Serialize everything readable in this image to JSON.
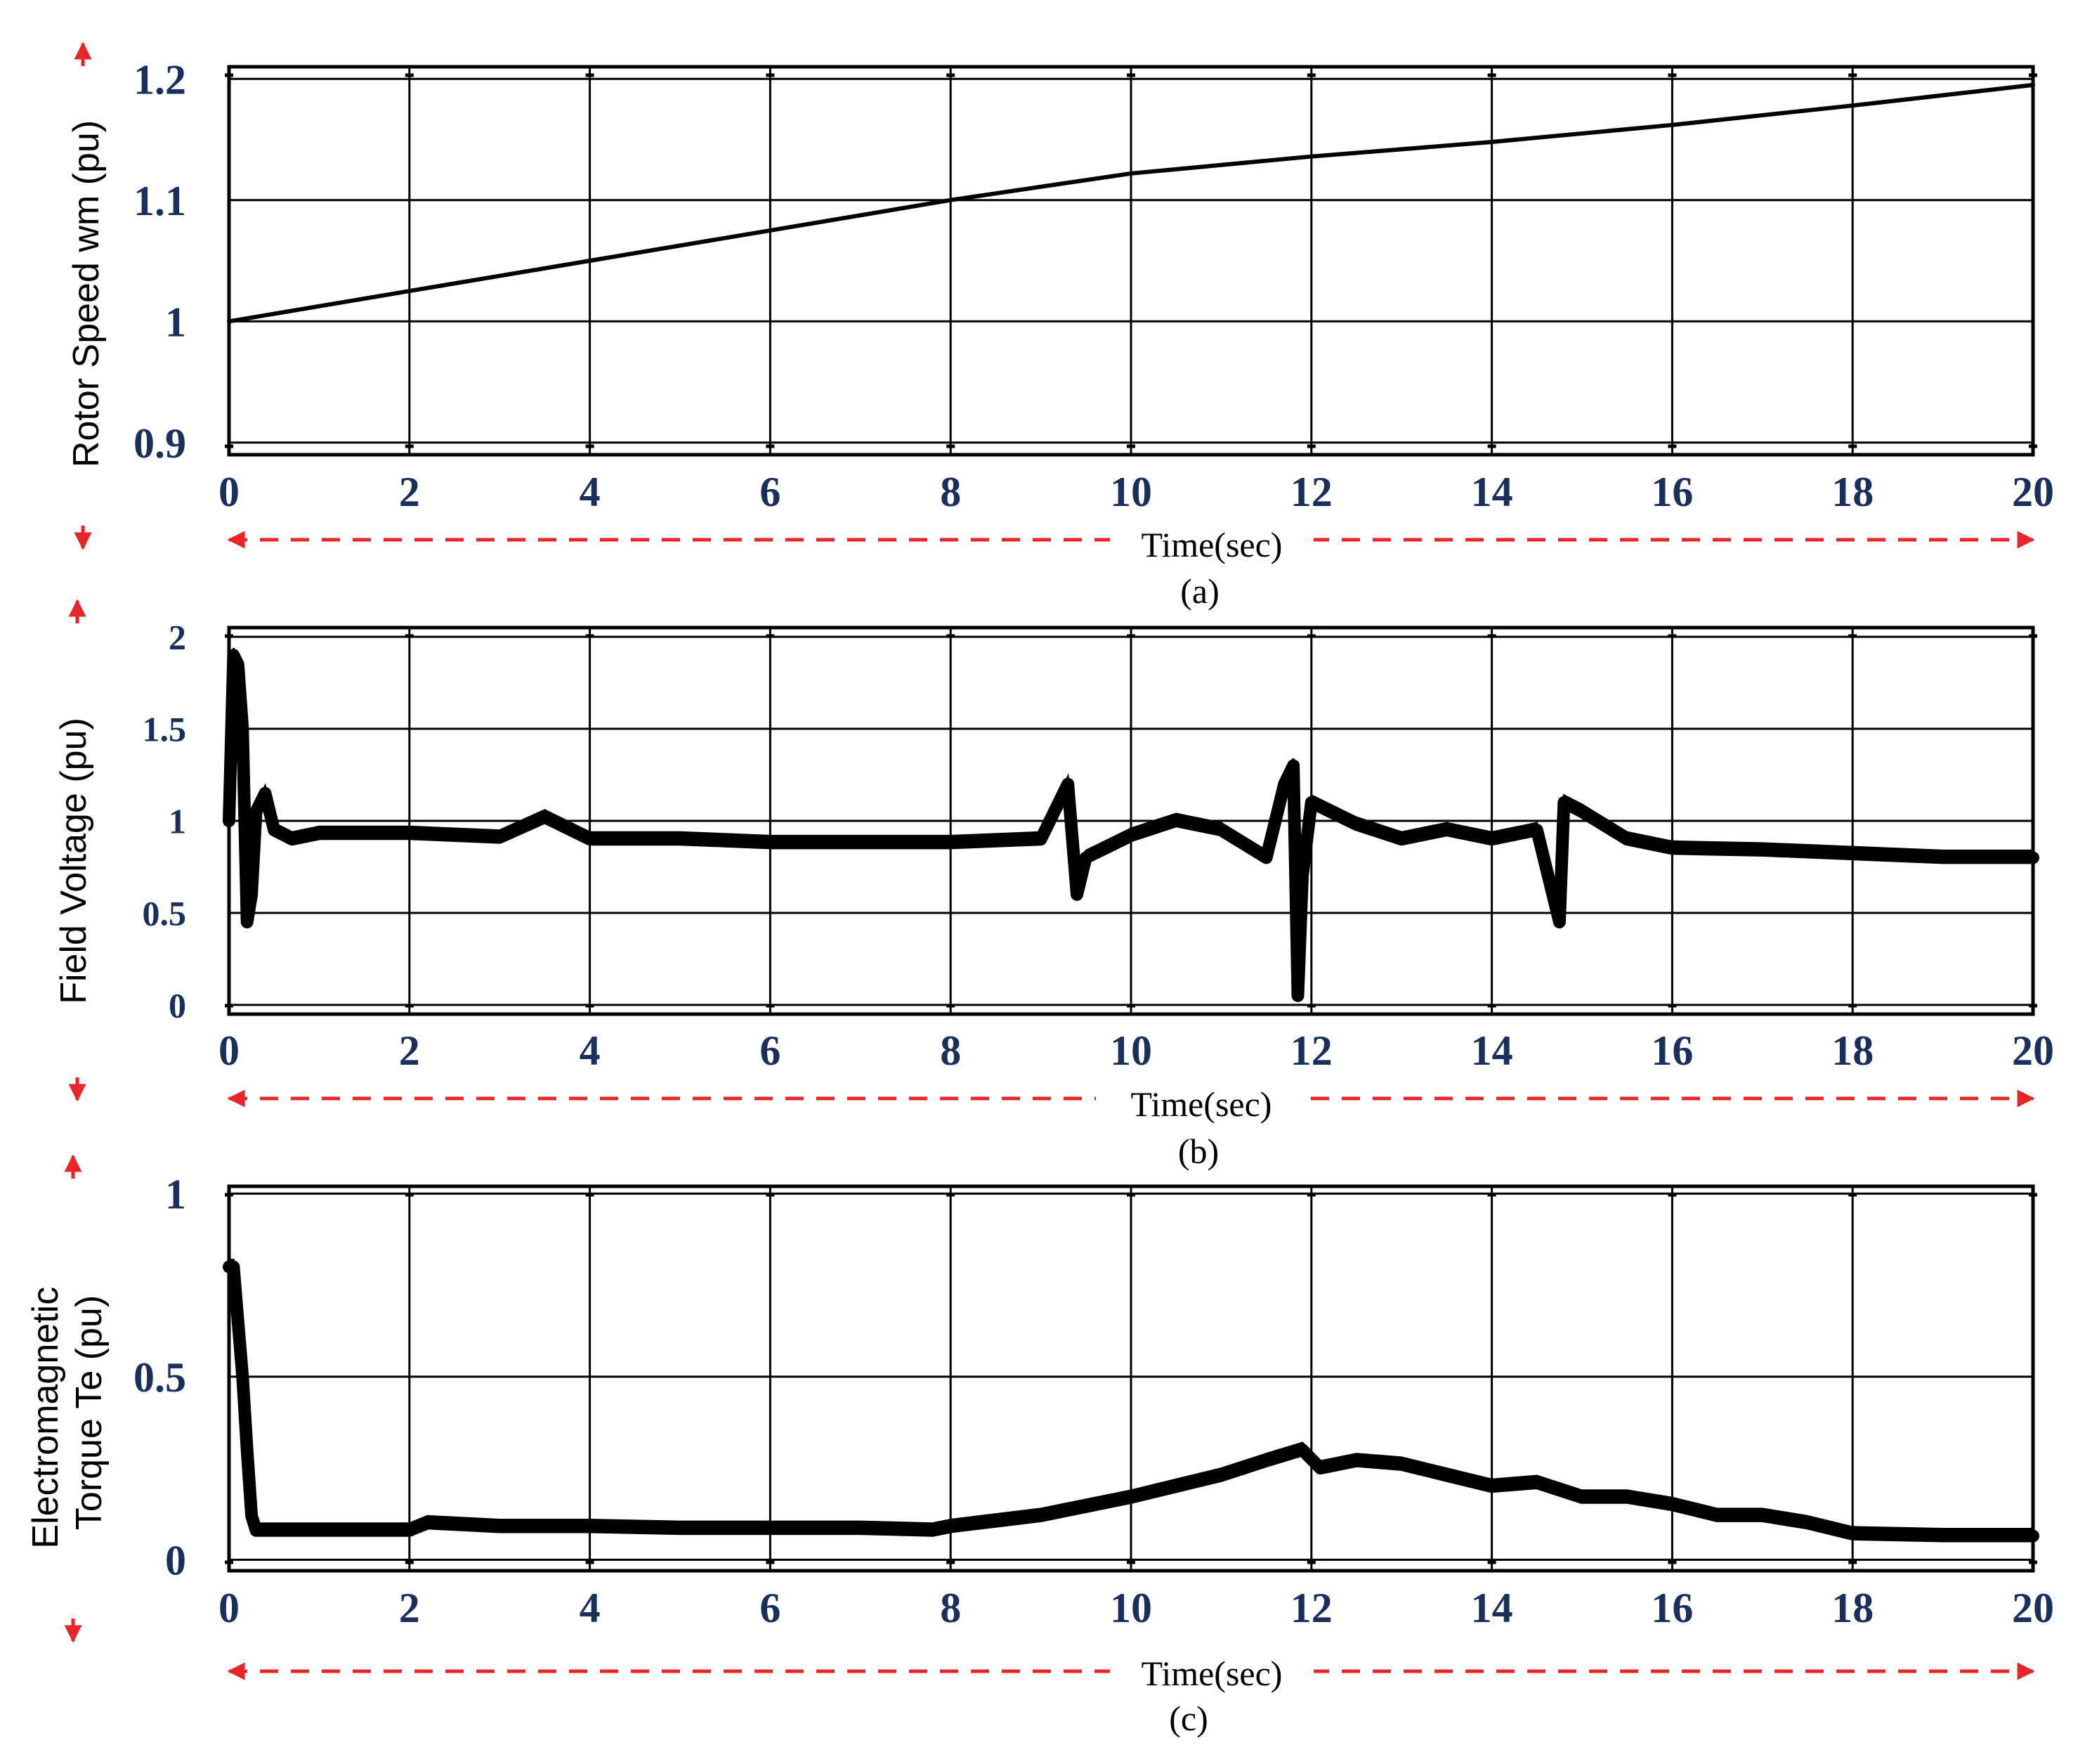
{
  "colors": {
    "signal": "#000000",
    "grid": "#000000",
    "tick_label": "#1a2f5c",
    "arrow": "#e8262a"
  },
  "chart_data": [
    {
      "type": "line",
      "panel_label": "(a)",
      "xlabel": "Time(sec)",
      "ylabel": "Rotor Speed wm (pu)",
      "xlim": [
        0,
        20
      ],
      "ylim": [
        0.89,
        1.21
      ],
      "x_ticks": [
        "0",
        "2",
        "4",
        "6",
        "8",
        "10",
        "12",
        "14",
        "16",
        "18",
        "20"
      ],
      "y_ticks": [
        {
          "v": 0.9,
          "label": "0.9"
        },
        {
          "v": 1.0,
          "label": "1"
        },
        {
          "v": 1.1,
          "label": "1.1"
        },
        {
          "v": 1.2,
          "label": "1.2"
        }
      ],
      "grid": true,
      "series": [
        {
          "x": [
            0,
            2,
            4,
            6,
            8,
            10,
            12,
            14,
            16,
            18,
            20
          ],
          "y": [
            1.0,
            1.025,
            1.05,
            1.075,
            1.1,
            1.122,
            1.136,
            1.148,
            1.162,
            1.178,
            1.195
          ]
        }
      ]
    },
    {
      "type": "line",
      "panel_label": "(b)",
      "xlabel": "Time(sec)",
      "ylabel": "Field Voltage (pu)",
      "xlim": [
        0,
        20
      ],
      "ylim": [
        -0.05,
        2.05
      ],
      "x_ticks": [
        "0",
        "2",
        "4",
        "6",
        "8",
        "10",
        "12",
        "14",
        "16",
        "18",
        "20"
      ],
      "y_ticks": [
        {
          "v": 0,
          "label": "0"
        },
        {
          "v": 0.5,
          "label": "0.5"
        },
        {
          "v": 1,
          "label": "1"
        },
        {
          "v": 1.5,
          "label": "1.5"
        },
        {
          "v": 2,
          "label": "2"
        }
      ],
      "grid": true,
      "series": [
        {
          "x": [
            0,
            0.05,
            0.1,
            0.15,
            0.2,
            0.25,
            0.3,
            0.4,
            0.5,
            0.7,
            1,
            2,
            3,
            3.5,
            4,
            5,
            6,
            7,
            8,
            9,
            9.3,
            9.4,
            9.5,
            10,
            10.5,
            11,
            11.5,
            11.7,
            11.8,
            11.85,
            11.9,
            12,
            12.5,
            13,
            13.5,
            14,
            14.5,
            14.75,
            14.8,
            15,
            15.5,
            16,
            17,
            18,
            19,
            20
          ],
          "y": [
            1.0,
            1.9,
            1.85,
            1.5,
            0.45,
            0.6,
            1.05,
            1.15,
            0.95,
            0.9,
            0.93,
            0.93,
            0.91,
            1.02,
            0.9,
            0.9,
            0.88,
            0.88,
            0.88,
            0.9,
            1.2,
            0.6,
            0.8,
            0.92,
            1.0,
            0.95,
            0.8,
            1.2,
            1.3,
            0.05,
            0.7,
            1.1,
            0.98,
            0.9,
            0.95,
            0.9,
            0.95,
            0.45,
            1.1,
            1.05,
            0.9,
            0.85,
            0.84,
            0.82,
            0.8,
            0.8
          ]
        }
      ]
    },
    {
      "type": "line",
      "panel_label": "(c)",
      "xlabel": "Time(sec)",
      "ylabel": "Electromagnetic Torque Te (pu)",
      "xlim": [
        0,
        20
      ],
      "ylim": [
        -0.03,
        1.02
      ],
      "x_ticks": [
        "0",
        "2",
        "4",
        "6",
        "8",
        "10",
        "12",
        "14",
        "16",
        "18",
        "20"
      ],
      "y_ticks": [
        {
          "v": 0,
          "label": "0"
        },
        {
          "v": 0.5,
          "label": "0.5"
        },
        {
          "v": 1,
          "label": "1"
        }
      ],
      "grid": true,
      "series": [
        {
          "x": [
            0,
            0.05,
            0.1,
            0.15,
            0.2,
            0.25,
            0.3,
            1,
            2,
            2.2,
            3,
            4,
            5,
            6,
            7,
            7.8,
            8,
            9,
            10,
            11,
            11.5,
            11.9,
            12.1,
            12.5,
            13,
            13.5,
            14,
            14.5,
            15,
            15.5,
            16,
            16.5,
            17,
            17.5,
            18,
            19,
            20
          ],
          "y": [
            0.8,
            0.8,
            0.65,
            0.5,
            0.3,
            0.12,
            0.08,
            0.08,
            0.08,
            0.1,
            0.09,
            0.09,
            0.085,
            0.085,
            0.085,
            0.08,
            0.09,
            0.12,
            0.17,
            0.23,
            0.27,
            0.3,
            0.25,
            0.27,
            0.26,
            0.23,
            0.2,
            0.21,
            0.17,
            0.17,
            0.15,
            0.12,
            0.12,
            0.1,
            0.07,
            0.065,
            0.065
          ]
        }
      ]
    }
  ]
}
